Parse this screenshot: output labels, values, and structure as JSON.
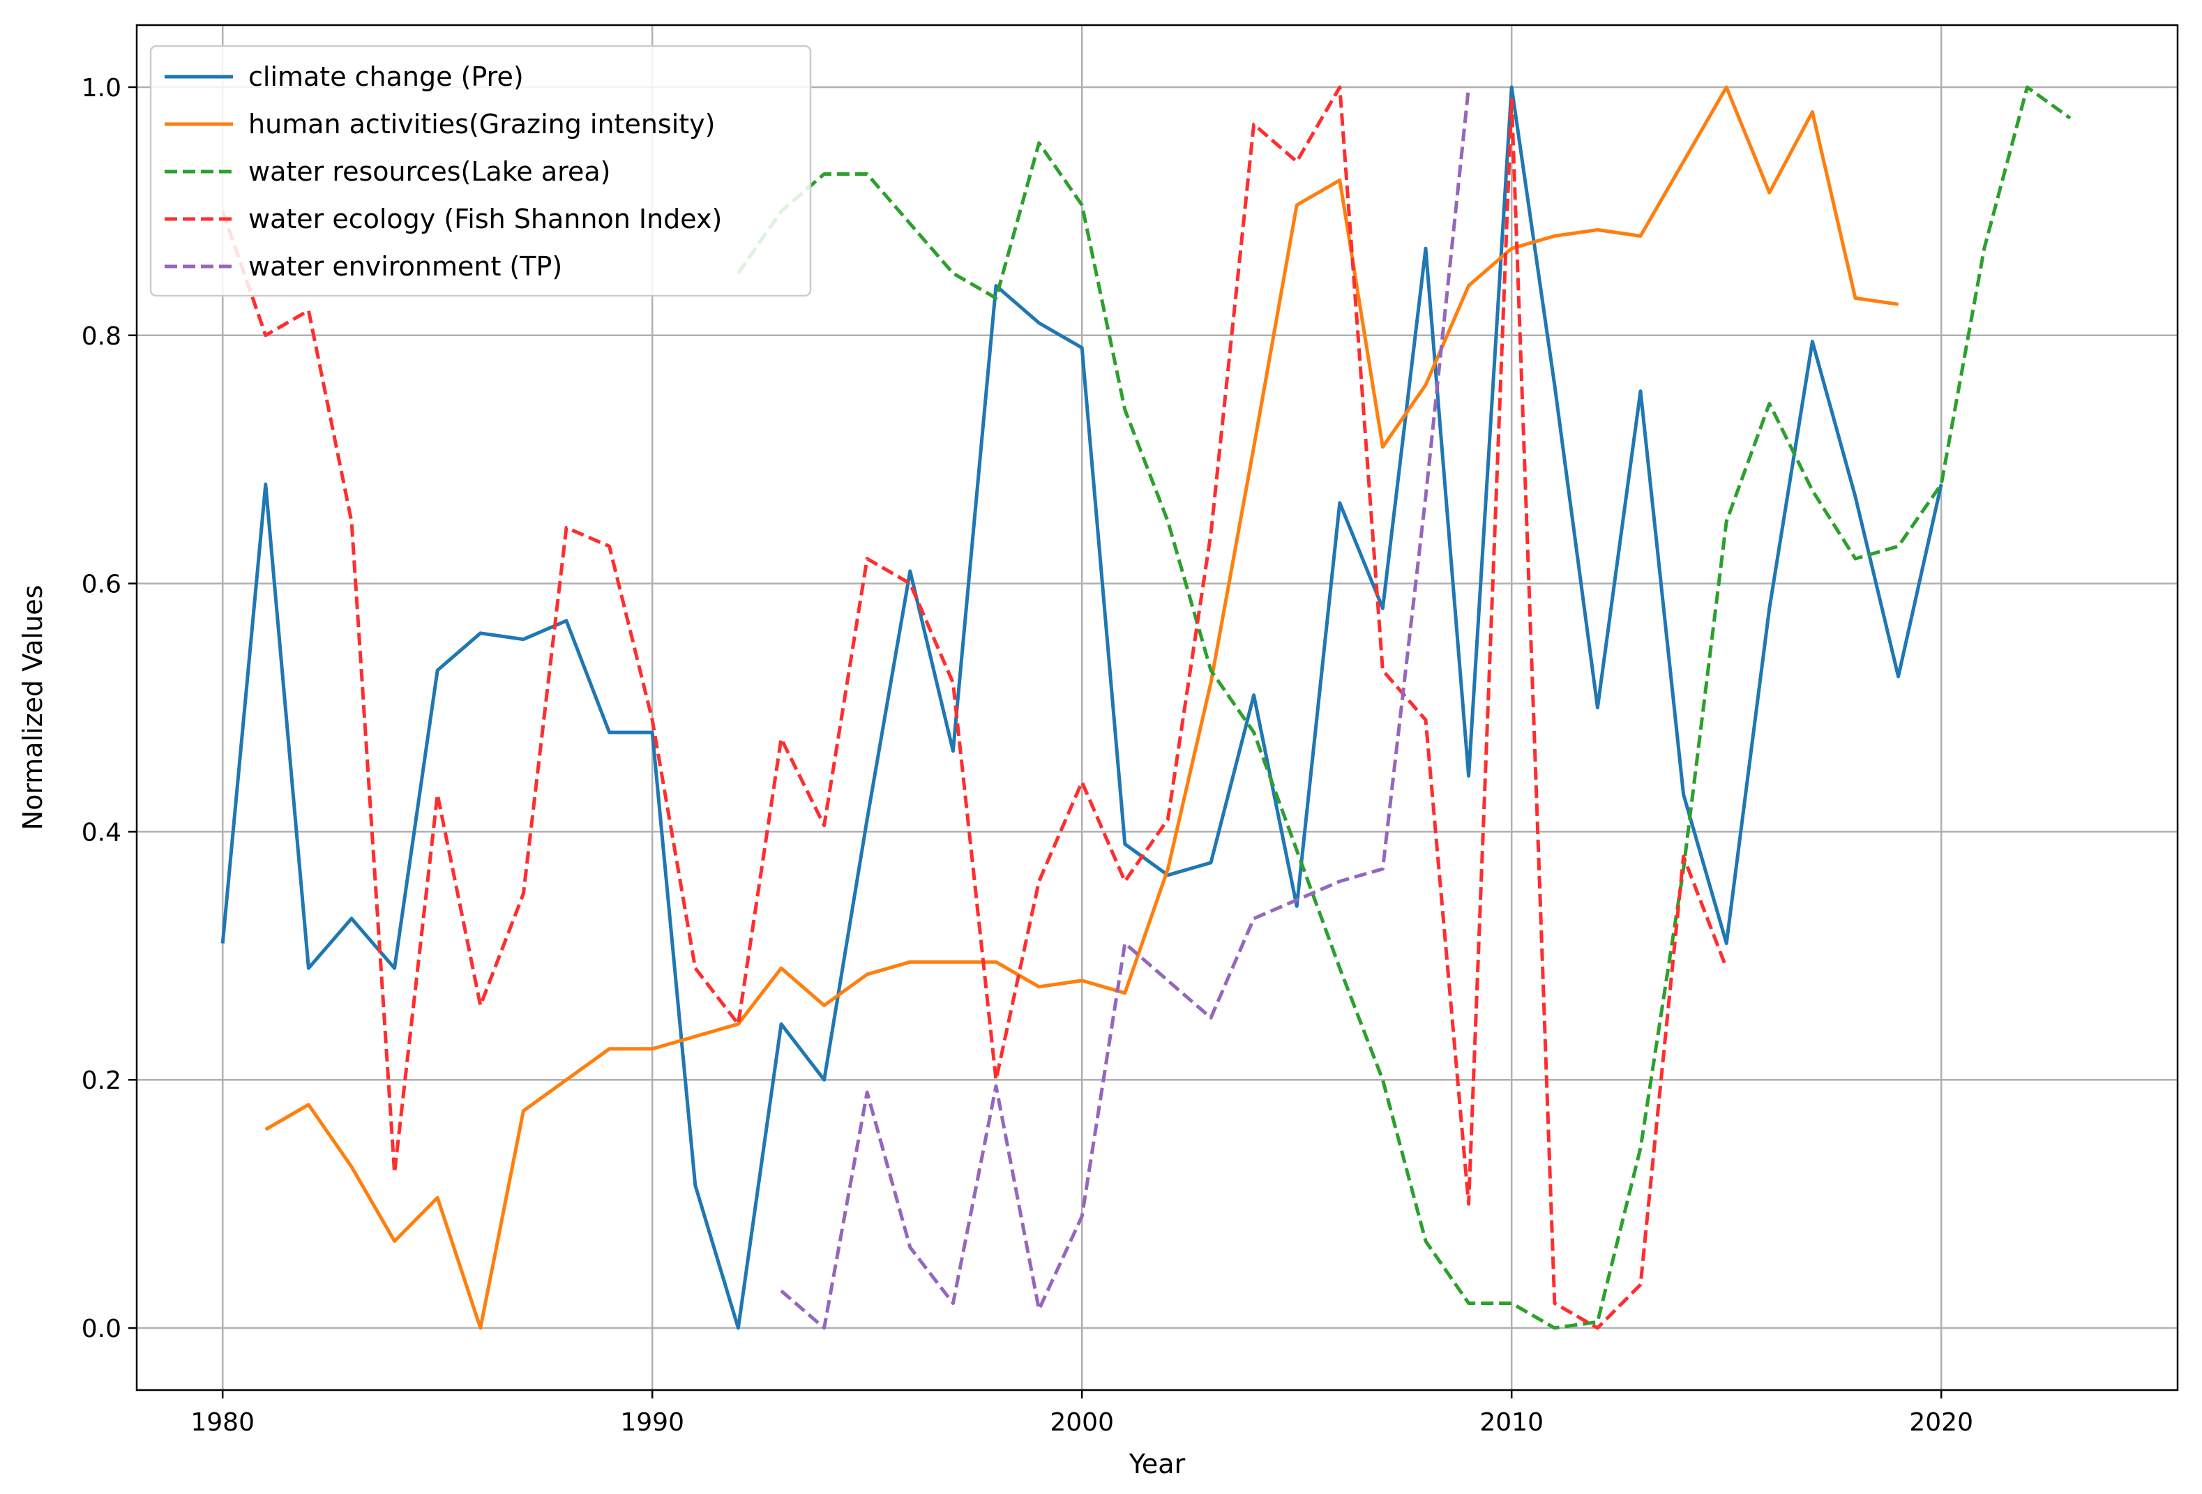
{
  "chart_data": {
    "type": "line",
    "title": "",
    "xlabel": "Year",
    "ylabel": "Normalized Values",
    "xlim": [
      1978,
      2025.5
    ],
    "ylim": [
      -0.05,
      1.05
    ],
    "xticks": [
      1980,
      1990,
      2000,
      2010,
      2020
    ],
    "yticks": [
      0.0,
      0.2,
      0.4,
      0.6,
      0.8,
      1.0
    ],
    "xtick_labels": [
      "1980",
      "1990",
      "2000",
      "2010",
      "2020"
    ],
    "ytick_labels": [
      "0.0",
      "0.2",
      "0.4",
      "0.6",
      "0.8",
      "1.0"
    ],
    "grid": true,
    "legend_position": "top-left",
    "series": [
      {
        "name": "climate change (Pre)",
        "color": "#1f77b4",
        "style": "solid",
        "points": [
          [
            1980,
            0.31
          ],
          [
            1981,
            0.68
          ],
          [
            1982,
            0.29
          ],
          [
            1983,
            0.33
          ],
          [
            1984,
            0.29
          ],
          [
            1985,
            0.53
          ],
          [
            1986,
            0.56
          ],
          [
            1987,
            0.555
          ],
          [
            1988,
            0.57
          ],
          [
            1989,
            0.48
          ],
          [
            1990,
            0.48
          ],
          [
            1991,
            0.115
          ],
          [
            1992,
            0.0
          ],
          [
            1993,
            0.245
          ],
          [
            1994,
            0.2
          ],
          [
            1995,
            0.41
          ],
          [
            1996,
            0.61
          ],
          [
            1997,
            0.465
          ],
          [
            1998,
            0.84
          ],
          [
            1999,
            0.81
          ],
          [
            2000,
            0.79
          ],
          [
            2001,
            0.39
          ],
          [
            2002,
            0.365
          ],
          [
            2003,
            0.375
          ],
          [
            2004,
            0.51
          ],
          [
            2005,
            0.34
          ],
          [
            2006,
            0.665
          ],
          [
            2007,
            0.58
          ],
          [
            2008,
            0.87
          ],
          [
            2009,
            0.445
          ],
          [
            2010,
            1.0
          ],
          [
            2011,
            0.76
          ],
          [
            2012,
            0.5
          ],
          [
            2013,
            0.755
          ],
          [
            2014,
            0.43
          ],
          [
            2015,
            0.31
          ],
          [
            2016,
            0.58
          ],
          [
            2017,
            0.795
          ],
          [
            2018,
            0.67
          ],
          [
            2019,
            0.525
          ],
          [
            2020,
            0.68
          ]
        ]
      },
      {
        "name": "human activities(Grazing intensity)",
        "color": "#ff7f0e",
        "style": "solid",
        "points": [
          [
            1981,
            0.16
          ],
          [
            1982,
            0.18
          ],
          [
            1983,
            0.13
          ],
          [
            1984,
            0.07
          ],
          [
            1985,
            0.105
          ],
          [
            1986,
            0.0
          ],
          [
            1987,
            0.175
          ],
          [
            1988,
            0.2
          ],
          [
            1989,
            0.225
          ],
          [
            1990,
            0.225
          ],
          [
            1991,
            0.235
          ],
          [
            1992,
            0.245
          ],
          [
            1993,
            0.29
          ],
          [
            1994,
            0.26
          ],
          [
            1995,
            0.285
          ],
          [
            1996,
            0.295
          ],
          [
            1997,
            0.295
          ],
          [
            1998,
            0.295
          ],
          [
            1999,
            0.275
          ],
          [
            2000,
            0.28
          ],
          [
            2001,
            0.27
          ],
          [
            2002,
            0.37
          ],
          [
            2003,
            0.52
          ],
          [
            2004,
            0.71
          ],
          [
            2005,
            0.905
          ],
          [
            2006,
            0.925
          ],
          [
            2007,
            0.71
          ],
          [
            2008,
            0.76
          ],
          [
            2009,
            0.84
          ],
          [
            2010,
            0.87
          ],
          [
            2011,
            0.88
          ],
          [
            2012,
            0.885
          ],
          [
            2013,
            0.88
          ],
          [
            2014,
            0.94
          ],
          [
            2015,
            1.0
          ],
          [
            2016,
            0.915
          ],
          [
            2017,
            0.98
          ],
          [
            2018,
            0.83
          ],
          [
            2019,
            0.825
          ]
        ]
      },
      {
        "name": "water resources(Lake area)",
        "color": "#2ca02c",
        "style": "dashed",
        "points": [
          [
            1992,
            0.85
          ],
          [
            1993,
            0.9
          ],
          [
            1994,
            0.93
          ],
          [
            1995,
            0.93
          ],
          [
            1996,
            0.89
          ],
          [
            1997,
            0.85
          ],
          [
            1998,
            0.83
          ],
          [
            1999,
            0.955
          ],
          [
            2000,
            0.905
          ],
          [
            2001,
            0.74
          ],
          [
            2002,
            0.65
          ],
          [
            2003,
            0.53
          ],
          [
            2004,
            0.48
          ],
          [
            2005,
            0.385
          ],
          [
            2006,
            0.29
          ],
          [
            2007,
            0.2
          ],
          [
            2008,
            0.07
          ],
          [
            2009,
            0.02
          ],
          [
            2010,
            0.02
          ],
          [
            2011,
            0.0
          ],
          [
            2012,
            0.005
          ],
          [
            2013,
            0.145
          ],
          [
            2014,
            0.37
          ],
          [
            2015,
            0.65
          ],
          [
            2016,
            0.745
          ],
          [
            2017,
            0.675
          ],
          [
            2018,
            0.62
          ],
          [
            2019,
            0.63
          ],
          [
            2020,
            0.68
          ],
          [
            2021,
            0.87
          ],
          [
            2022,
            1.0
          ],
          [
            2023,
            0.975
          ]
        ]
      },
      {
        "name": "water ecology (Fish Shannon Index)",
        "color": "#ff2e2e",
        "style": "dashed",
        "points": [
          [
            1980,
            0.9
          ],
          [
            1981,
            0.8
          ],
          [
            1982,
            0.82
          ],
          [
            1983,
            0.65
          ],
          [
            1984,
            0.125
          ],
          [
            1985,
            0.43
          ],
          [
            1986,
            0.26
          ],
          [
            1987,
            0.35
          ],
          [
            1988,
            0.645
          ],
          [
            1989,
            0.63
          ],
          [
            1990,
            0.49
          ],
          [
            1991,
            0.29
          ],
          [
            1992,
            0.245
          ],
          [
            1993,
            0.475
          ],
          [
            1994,
            0.405
          ],
          [
            1995,
            0.62
          ],
          [
            1996,
            0.6
          ],
          [
            1997,
            0.52
          ],
          [
            1998,
            0.2
          ],
          [
            1999,
            0.36
          ],
          [
            2000,
            0.44
          ],
          [
            2001,
            0.36
          ],
          [
            2002,
            0.41
          ],
          [
            2003,
            0.64
          ],
          [
            2004,
            0.97
          ],
          [
            2005,
            0.94
          ],
          [
            2006,
            1.0
          ],
          [
            2007,
            0.53
          ],
          [
            2008,
            0.49
          ],
          [
            2009,
            0.1
          ],
          [
            2010,
            0.99
          ],
          [
            2011,
            0.02
          ],
          [
            2012,
            0.0
          ],
          [
            2013,
            0.035
          ],
          [
            2014,
            0.38
          ],
          [
            2015,
            0.29
          ]
        ]
      },
      {
        "name": "water environment (TP)",
        "color": "#9467bd",
        "style": "dashed",
        "points": [
          [
            1993,
            0.03
          ],
          [
            1994,
            0.0
          ],
          [
            1995,
            0.19
          ],
          [
            1996,
            0.065
          ],
          [
            1997,
            0.02
          ],
          [
            1998,
            0.195
          ],
          [
            1999,
            0.015
          ],
          [
            2000,
            0.09
          ],
          [
            2001,
            0.31
          ],
          [
            2002,
            0.28
          ],
          [
            2003,
            0.25
          ],
          [
            2004,
            0.33
          ],
          [
            2005,
            0.345
          ],
          [
            2006,
            0.36
          ],
          [
            2007,
            0.37
          ],
          [
            2008,
            0.67
          ],
          [
            2009,
            1.0
          ]
        ]
      }
    ]
  }
}
